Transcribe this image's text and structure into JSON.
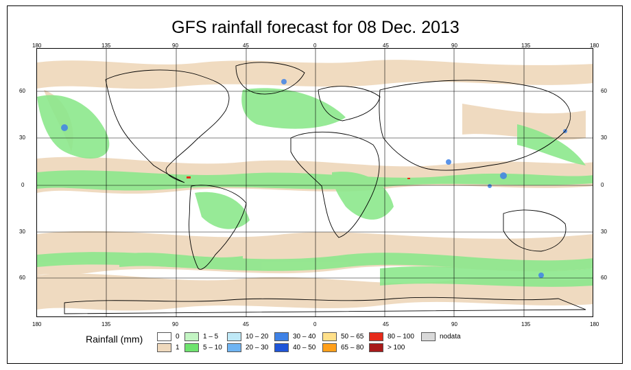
{
  "title": "GFS rainfall forecast for 08 Dec. 2013",
  "lon_ticks": [
    "180",
    "135",
    "90",
    "45",
    "0",
    "45",
    "90",
    "135",
    "180"
  ],
  "lat_ticks": [
    "60",
    "30",
    "0",
    "30",
    "60"
  ],
  "legend": {
    "title": "Rainfall (mm)",
    "items": [
      {
        "label": "0",
        "color": "#ffffff"
      },
      {
        "label": "1",
        "color": "#efd9bd"
      },
      {
        "label": "1 – 5",
        "color": "#c3f5c3"
      },
      {
        "label": "5 – 10",
        "color": "#6fe36f"
      },
      {
        "label": "10 – 20",
        "color": "#bfe9f7"
      },
      {
        "label": "20 – 30",
        "color": "#6fb4f2"
      },
      {
        "label": "30 – 40",
        "color": "#3f82e6"
      },
      {
        "label": "40 – 50",
        "color": "#1f55d8"
      },
      {
        "label": "50 – 65",
        "color": "#ffe08a"
      },
      {
        "label": "65 – 80",
        "color": "#ff9f1a"
      },
      {
        "label": "80 – 100",
        "color": "#e62a1a"
      },
      {
        "label": "> 100",
        "color": "#a81a1a"
      },
      {
        "label": "nodata",
        "color": "#d9d9d9"
      }
    ]
  }
}
